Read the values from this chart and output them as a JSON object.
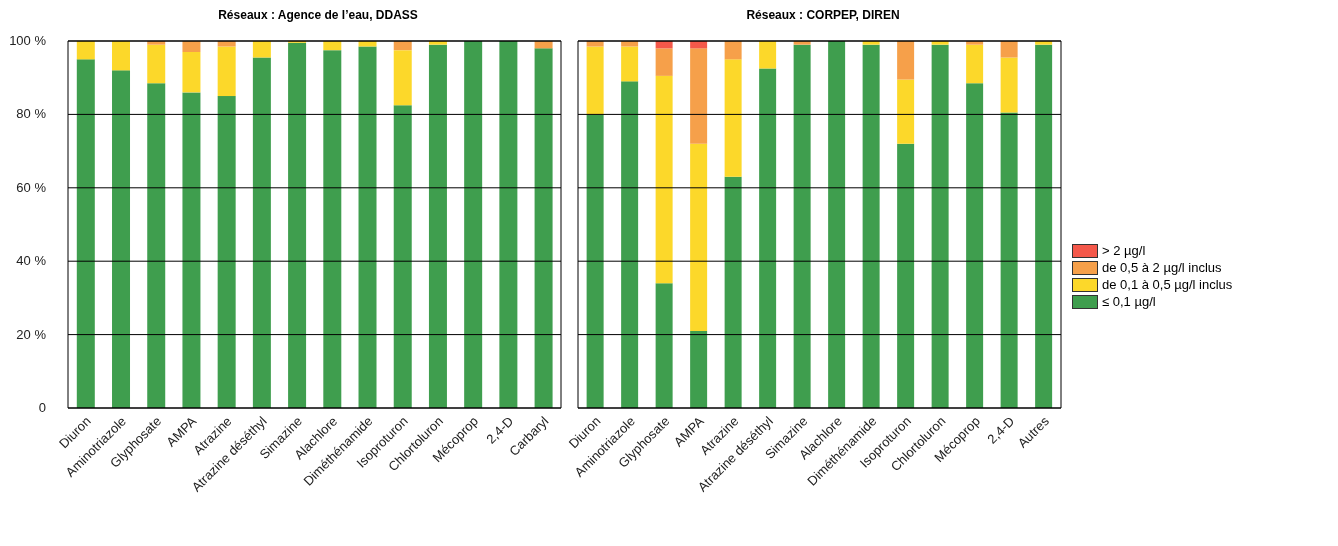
{
  "chart_data": [
    {
      "type": "bar",
      "title": "Réseaux : Agence de l’eau, DDASS",
      "stacked": true,
      "grid": "y",
      "legend": false,
      "categories": [
        "Diuron",
        "Aminotriazole",
        "Glyphosate",
        "AMPA",
        "Atrazine",
        "Atrazine déséthyl",
        "Simazine",
        "Alachlore",
        "Diméthénamide",
        "Isoproturon",
        "Chlortoluron",
        "Mécoprop",
        "2,4-D",
        "Carbaryl"
      ],
      "ylim": [
        0,
        100
      ],
      "yticks": [
        0,
        {
          "value": 20,
          "label": "20 %"
        },
        {
          "value": 40,
          "label": "40 %"
        },
        {
          "value": 60,
          "label": "60 %"
        },
        {
          "value": 80,
          "label": "80 %"
        },
        {
          "value": 100,
          "label": "100 %"
        }
      ],
      "series": [
        {
          "color": "#3f9e4e",
          "values": [
            95,
            92,
            88.5,
            86,
            85,
            95.5,
            99.5,
            97.5,
            98.5,
            82.5,
            99,
            100,
            100,
            98
          ]
        },
        {
          "color": "#fcd82a",
          "values": [
            5,
            8,
            10.5,
            11,
            13.5,
            4.5,
            0.5,
            2.5,
            1.5,
            15,
            1,
            0,
            0,
            0
          ]
        },
        {
          "color": "#f6a04a",
          "values": [
            0,
            0,
            1,
            3,
            1.5,
            0,
            0,
            0,
            0,
            2.5,
            0,
            0,
            0,
            2
          ]
        },
        {
          "color": "#f4584a",
          "values": [
            0,
            0,
            0,
            0,
            0,
            0,
            0,
            0,
            0,
            0,
            0,
            0,
            0,
            0
          ]
        }
      ]
    },
    {
      "type": "bar",
      "title": "Réseaux : CORPEP, DIREN",
      "stacked": true,
      "grid": "y",
      "legend": "right",
      "tick_labels": "x",
      "categories": [
        "Diuron",
        "Aminotriazole",
        "Glyphosate",
        "AMPA",
        "Atrazine",
        "Atrazine déséthyl",
        "Simazine",
        "Alachlore",
        "Diméthénamide",
        "Isoproturon",
        "Chlortoluron",
        "Mécoprop",
        "2,4-D",
        "Autres"
      ],
      "ylim": [
        0,
        100
      ],
      "yticks": [
        0,
        20,
        40,
        60,
        80,
        100
      ],
      "series": [
        {
          "name": "≤ 0,1 µg/l",
          "color": "#3f9e4e",
          "values": [
            80,
            89,
            34,
            21,
            63,
            92.5,
            99,
            100,
            99,
            72,
            99,
            88.5,
            80.5,
            99
          ]
        },
        {
          "name": "de 0,1 à 0,5 µg/l inclus",
          "color": "#fcd82a",
          "values": [
            18.5,
            9.5,
            56.5,
            51,
            32,
            7.5,
            0,
            0,
            1,
            17.5,
            1,
            10.5,
            15,
            1
          ]
        },
        {
          "name": "de 0,5 à 2 µg/l inclus",
          "color": "#f6a04a",
          "values": [
            1.5,
            1.5,
            7.5,
            26,
            5,
            0,
            1,
            0,
            0,
            10.5,
            0,
            1,
            4.5,
            0
          ]
        },
        {
          "name": "> 2 µg/l",
          "color": "#f4584a",
          "values": [
            0,
            0,
            2,
            2,
            0,
            0,
            0,
            0,
            0,
            0,
            0,
            0,
            0,
            0
          ]
        }
      ]
    }
  ]
}
